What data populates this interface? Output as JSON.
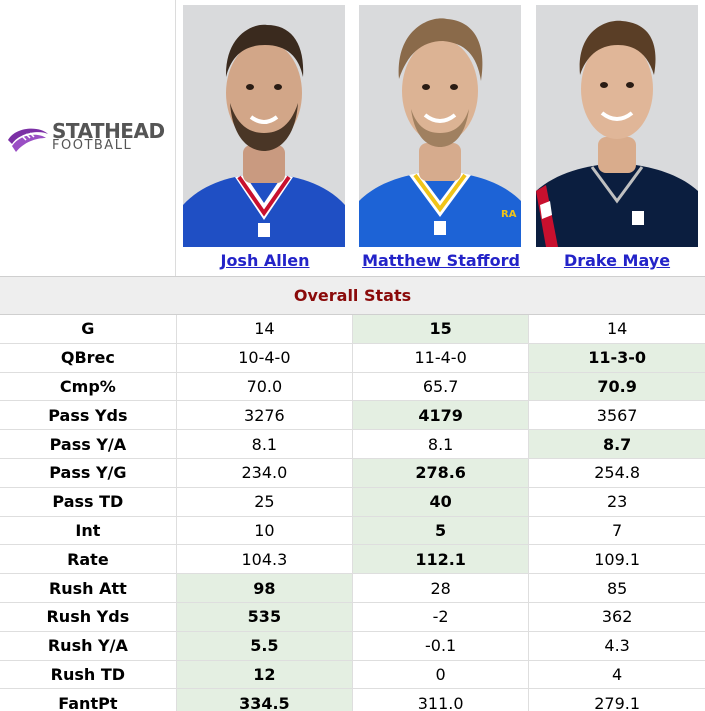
{
  "brand": {
    "name": "STATHEAD",
    "sub": "FOOTBALL",
    "accent_color": "#7b2fa5",
    "icon": "football-swoosh-icon"
  },
  "players": [
    {
      "name": "Josh Allen",
      "jersey_color": "#1f4fc4",
      "accent_color": "#c8102e"
    },
    {
      "name": "Matthew Stafford",
      "jersey_color": "#1d63d6",
      "accent_color": "#f0c419"
    },
    {
      "name": "Drake Maye",
      "jersey_color": "#0b1e3f",
      "accent_color": "#c8102e"
    }
  ],
  "section_title": "Overall Stats",
  "highlight_color": "#e4efe2",
  "rows": [
    {
      "label": "G",
      "values": [
        "14",
        "15",
        "14"
      ],
      "best": 1
    },
    {
      "label": "QBrec",
      "values": [
        "10-4-0",
        "11-4-0",
        "11-3-0"
      ],
      "best": 2
    },
    {
      "label": "Cmp%",
      "values": [
        "70.0",
        "65.7",
        "70.9"
      ],
      "best": 2
    },
    {
      "label": "Pass Yds",
      "values": [
        "3276",
        "4179",
        "3567"
      ],
      "best": 1
    },
    {
      "label": "Pass Y/A",
      "values": [
        "8.1",
        "8.1",
        "8.7"
      ],
      "best": 2
    },
    {
      "label": "Pass Y/G",
      "values": [
        "234.0",
        "278.6",
        "254.8"
      ],
      "best": 1
    },
    {
      "label": "Pass TD",
      "values": [
        "25",
        "40",
        "23"
      ],
      "best": 1
    },
    {
      "label": "Int",
      "values": [
        "10",
        "5",
        "7"
      ],
      "best": 1
    },
    {
      "label": "Rate",
      "values": [
        "104.3",
        "112.1",
        "109.1"
      ],
      "best": 1
    },
    {
      "label": "Rush Att",
      "values": [
        "98",
        "28",
        "85"
      ],
      "best": 0
    },
    {
      "label": "Rush Yds",
      "values": [
        "535",
        "-2",
        "362"
      ],
      "best": 0
    },
    {
      "label": "Rush Y/A",
      "values": [
        "5.5",
        "-0.1",
        "4.3"
      ],
      "best": 0
    },
    {
      "label": "Rush TD",
      "values": [
        "12",
        "0",
        "4"
      ],
      "best": 0
    },
    {
      "label": "FantPt",
      "values": [
        "334.5",
        "311.0",
        "279.1"
      ],
      "best": 0
    }
  ]
}
